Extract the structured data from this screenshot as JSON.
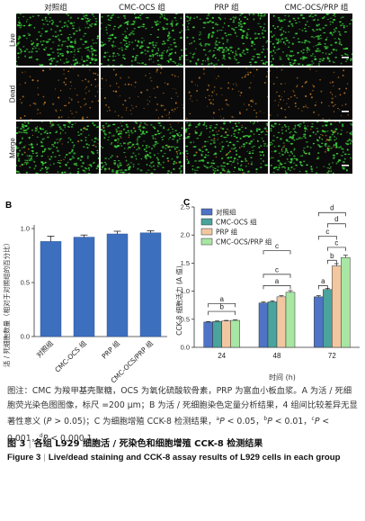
{
  "panel_a": {
    "letter": "",
    "columns": [
      "对照组",
      "CMC-OCS 组",
      "PRP 组",
      "CMC-OCS/PRP 组"
    ],
    "rows": [
      "Live",
      "Dead",
      "Merge"
    ]
  },
  "panel_b": {
    "letter": "B",
    "ylabel": "活 / 死细胞数量（相对于对照组的百分比）"
  },
  "panel_c": {
    "letter": "C",
    "ylabel": "CCK-8 细胞活力 (A 值)",
    "xlabel": "时间 (h)"
  },
  "chart_data": [
    {
      "type": "bar",
      "panel": "B",
      "categories": [
        "对照组",
        "CMC-OCS 组",
        "PRP 组",
        "CMC-OCS/PRP 组"
      ],
      "values": [
        0.88,
        0.92,
        0.95,
        0.96
      ],
      "errors": [
        0.05,
        0.02,
        0.025,
        0.02
      ],
      "ylim": [
        0,
        1.0
      ],
      "yticks": [
        0,
        0.5,
        1.0
      ],
      "color": "#3d6fbf"
    },
    {
      "type": "bar",
      "panel": "C",
      "categories": [
        "24",
        "48",
        "72"
      ],
      "series": [
        {
          "name": "对照组",
          "color": "#4f73c6",
          "values": [
            0.45,
            0.79,
            0.9
          ],
          "errors": [
            0.01,
            0.02,
            0.02
          ]
        },
        {
          "name": "CMC-OCS 组",
          "color": "#4aa39c",
          "values": [
            0.46,
            0.81,
            1.03
          ],
          "errors": [
            0.01,
            0.02,
            0.02
          ]
        },
        {
          "name": "PRP 组",
          "color": "#f2c7a0",
          "values": [
            0.47,
            0.9,
            1.45
          ],
          "errors": [
            0.01,
            0.02,
            0.04
          ]
        },
        {
          "name": "CMC-OCS/PRP 组",
          "color": "#a8e6a3",
          "values": [
            0.48,
            0.98,
            1.6
          ],
          "errors": [
            0.01,
            0.03,
            0.04
          ]
        }
      ],
      "ylim": [
        0,
        2.5
      ],
      "yticks": [
        0,
        0.5,
        1.0,
        1.5,
        2.0,
        2.5
      ],
      "legend": "top-left",
      "annotations": [
        {
          "group": 0,
          "from": 0,
          "to": 3,
          "label": "b",
          "level": 0.64
        },
        {
          "group": 0,
          "from": 0,
          "to": 3,
          "label": "a",
          "level": 0.78
        },
        {
          "group": 1,
          "from": 0,
          "to": 3,
          "label": "a",
          "level": 1.1
        },
        {
          "group": 1,
          "from": 0,
          "to": 3,
          "label": "c",
          "level": 1.3
        },
        {
          "group": 1,
          "from": 0,
          "to": 3,
          "label": "c",
          "level": 1.72
        },
        {
          "group": 2,
          "from": 0,
          "to": 1,
          "label": "a",
          "level": 1.1
        },
        {
          "group": 2,
          "from": 1,
          "to": 2,
          "label": "b",
          "level": 1.55
        },
        {
          "group": 2,
          "from": 1,
          "to": 3,
          "label": "c",
          "level": 1.78
        },
        {
          "group": 2,
          "from": 0,
          "to": 2,
          "label": "c",
          "level": 1.98
        },
        {
          "group": 2,
          "from": 1,
          "to": 3,
          "label": "d",
          "level": 2.2
        },
        {
          "group": 2,
          "from": 0,
          "to": 3,
          "label": "d",
          "level": 2.4
        }
      ]
    }
  ],
  "caption": {
    "line1": "图注：CMC 为羧甲基壳聚糖，OCS 为氧化硫酸软骨素，PRP 为富血小板血浆。A 为活 / 死细胞荧光染色图图像，标尺 =200 μm；B 为活 / 死细胞染色定量分析结果，4 组间比较差异无显著性意义 (",
    "p_b": "P",
    "line1_end": " > 0.05)；C 为细胞增殖 CCK-8 检测结果，",
    "sig_a": "a",
    "sig_a_text": " < 0.05，",
    "sig_b": "b",
    "sig_b_text": " < 0.01，",
    "sig_c": "c",
    "sig_c_text": " < 0.001，",
    "sig_d": "d",
    "sig_d_text": " < 0.000 1。"
  },
  "figure_title": {
    "cn_number": "图 3",
    "cn_text": "各组 L929 细胞活 / 死染色和细胞增殖 CCK-8 检测结果",
    "en_number": "Figure 3",
    "en_text": "Live/dead staining and CCK-8 assay results of L929 cells in each group"
  },
  "colors": {
    "live": "#3cd43c",
    "dead": "#e08a2a",
    "background": "#0a0a0a"
  }
}
